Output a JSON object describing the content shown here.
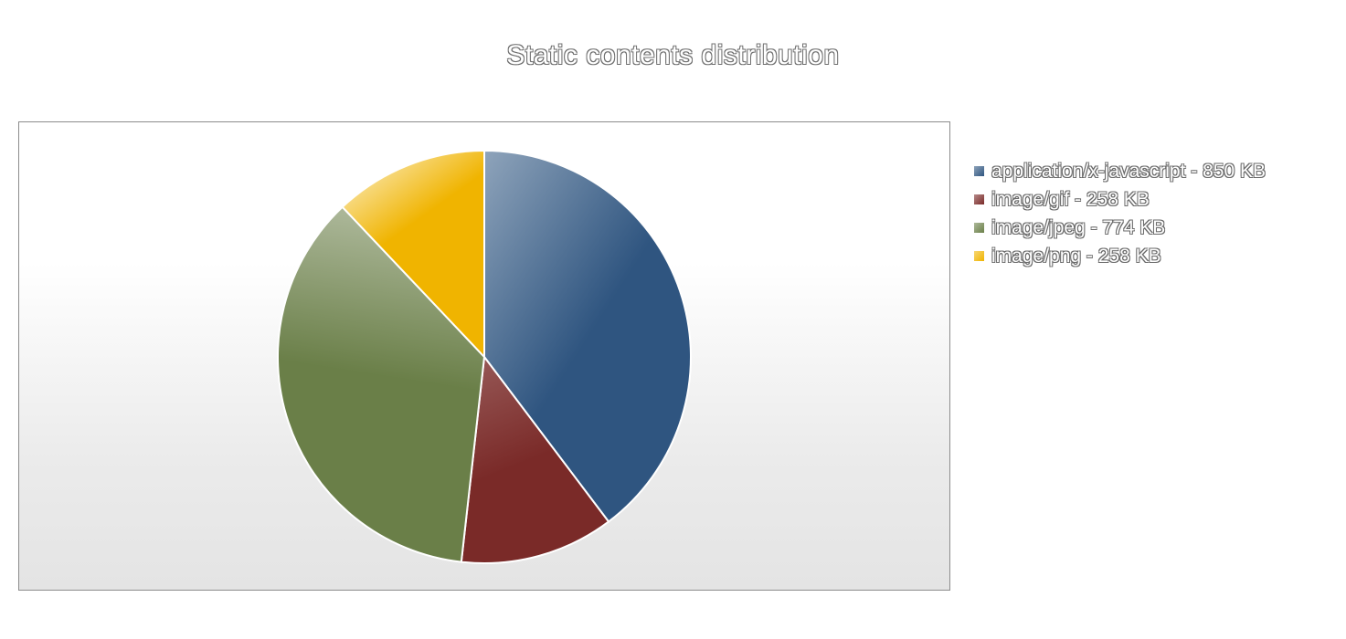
{
  "chart_data": {
    "type": "pie",
    "title": "Static contents distribution",
    "categories": [
      "application/x-javascript - 850 KB",
      "image/gif - 258 KB",
      "image/jpeg - 774 KB",
      "image/png - 258 KB"
    ],
    "values": [
      850,
      258,
      774,
      258
    ],
    "unit": "KB",
    "colors": [
      "#2f5580",
      "#7a2a28",
      "#6a7f48",
      "#f0b400"
    ],
    "legend": "right",
    "grid": false
  }
}
